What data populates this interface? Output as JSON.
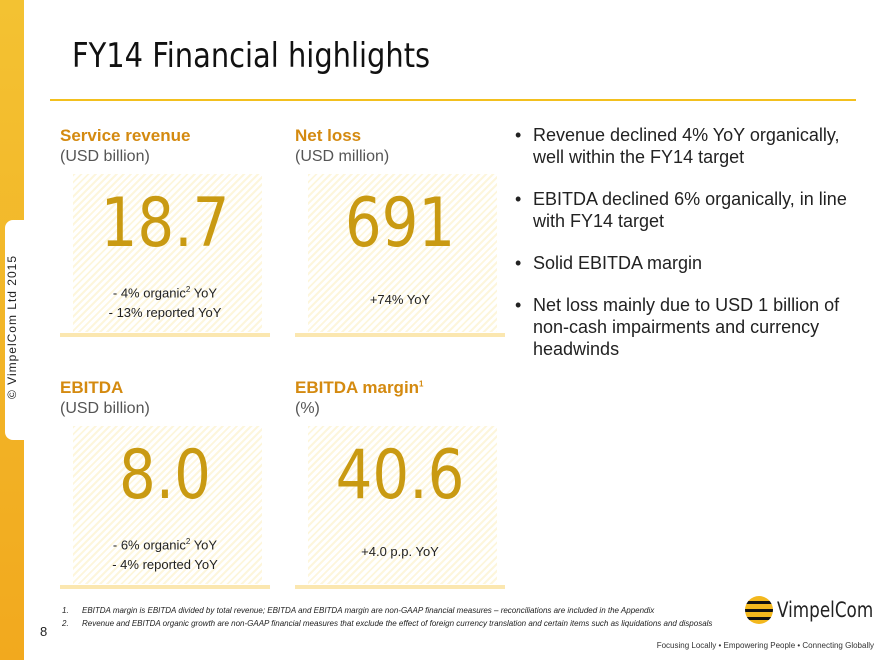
{
  "sidebar": {
    "copyright": "© VimpelCom Ltd 2015"
  },
  "title": "FY14 Financial highlights",
  "kpis": [
    {
      "label": "Service revenue",
      "unit": "(USD billion)",
      "value": "18.7",
      "notes": [
        "- 4% organic",
        "2",
        " YoY",
        "- 13% reported YoY"
      ]
    },
    {
      "label": "Net loss",
      "unit": "(USD million)",
      "value": "691",
      "notes": [
        "+74% YoY"
      ]
    },
    {
      "label": "EBITDA",
      "unit": "(USD billion)",
      "value": "8.0",
      "notes": [
        "- 6% organic",
        "2",
        " YoY",
        "- 4% reported YoY"
      ]
    },
    {
      "label": "EBITDA margin",
      "sup": "1",
      "unit": "(%)",
      "value": "40.6",
      "notes": [
        "+4.0 p.p. YoY"
      ]
    }
  ],
  "bullets": [
    "Revenue declined 4% YoY organically, well within the FY14 target",
    "EBITDA declined 6% organically, in line with FY14 target",
    "Solid EBITDA margin",
    "Net loss mainly due to USD 1 billion of non-cash impairments and currency headwinds"
  ],
  "footnotes": [
    {
      "n": "1.",
      "text": "EBITDA margin is EBITDA divided by total revenue; EBITDA and EBITDA margin are non-GAAP financial measures – reconciliations are included in the Appendix"
    },
    {
      "n": "2.",
      "text": "Revenue and EBITDA organic growth are non-GAAP financial measures that exclude the effect of foreign currency translation and certain items such as liquidations and disposals"
    }
  ],
  "page_number": "8",
  "logo": {
    "name": "VimpelCom",
    "tagline": "Focusing Locally • Empowering People • Connecting Globally"
  },
  "colors": {
    "accent": "#f3c01e",
    "kpi_label": "#d48a10",
    "kpi_value": "#c99a12"
  }
}
